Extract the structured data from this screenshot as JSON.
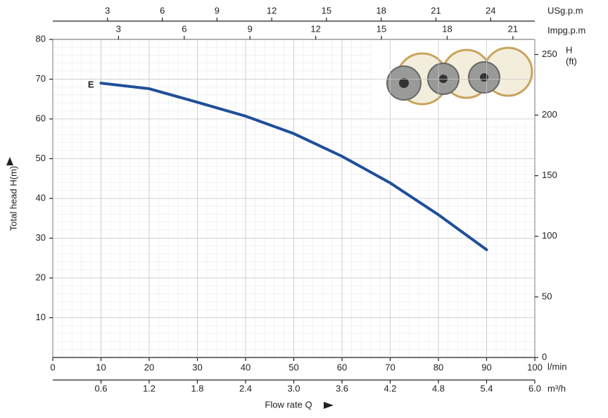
{
  "chart_data": {
    "type": "line",
    "x": [
      10,
      20,
      30,
      40,
      50,
      60,
      70,
      80,
      90
    ],
    "series": [
      {
        "name": "E",
        "color": "#1f4f9a",
        "values": [
          69,
          67.6,
          64.2,
          60.7,
          56.3,
          50.6,
          43.9,
          35.9,
          27.1
        ]
      }
    ],
    "xlim": [
      0,
      100
    ],
    "xticks": [
      0,
      10,
      20,
      30,
      40,
      50,
      60,
      70,
      80,
      90,
      100
    ],
    "xunit": "l/min",
    "xlabel": "Flow rate Q",
    "ylim": [
      0,
      80
    ],
    "yticks": [
      10,
      20,
      30,
      40,
      50,
      60,
      70,
      80
    ],
    "ylabel": "Total  head H(m)",
    "y2lim": [
      0,
      262.47
    ],
    "y2ticks": [
      0,
      50,
      100,
      150,
      200,
      250
    ],
    "y2label": [
      "H",
      "(ft)"
    ],
    "grid": true,
    "extra_x_axes": [
      {
        "position": "bottom",
        "unit": "m³/h",
        "lim": [
          0,
          6
        ],
        "ticks": [
          0.6,
          1.2,
          1.8,
          2.4,
          {
            "value": 3,
            "label": "3.0"
          },
          3.6,
          4.2,
          4.8,
          5.4,
          {
            "value": 6,
            "label": "6.0"
          }
        ]
      },
      {
        "position": "top",
        "unit": "USg.p.m",
        "lim": [
          0,
          26.42
        ],
        "ticks": [
          3,
          6,
          9,
          12,
          15,
          18,
          21,
          24
        ]
      },
      {
        "position": "top-inner",
        "unit": "Impg.p.m",
        "lim": [
          0,
          22
        ],
        "ticks": [
          3,
          6,
          9,
          12,
          15,
          18,
          21
        ]
      }
    ]
  }
}
